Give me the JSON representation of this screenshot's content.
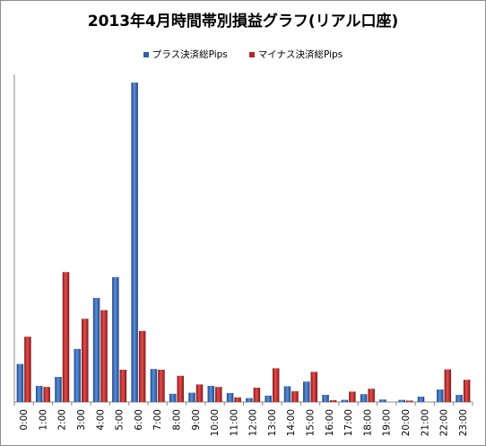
{
  "chart_data": {
    "type": "bar",
    "title": "2013年4月時間帯別損益グラフ(リアル口座)",
    "xlabel": "",
    "ylabel": "",
    "categories": [
      "0:00",
      "1:00",
      "2:00",
      "3:00",
      "4:00",
      "5:00",
      "6:00",
      "7:00",
      "8:00",
      "9:00",
      "10:00",
      "11:00",
      "12:00",
      "13:00",
      "14:00",
      "15:00",
      "16:00",
      "17:00",
      "18:00",
      "19:00",
      "20:00",
      "21:00",
      "22:00",
      "23:00"
    ],
    "series": [
      {
        "name": "プラス決済総Pips",
        "color": "#2e5fa8",
        "values": [
          106,
          45,
          70,
          148,
          290,
          348,
          890,
          92,
          23,
          26,
          45,
          25,
          11,
          18,
          44,
          57,
          20,
          6,
          22,
          7,
          6,
          15,
          35,
          20
        ]
      },
      {
        "name": "マイナス決済総Pips",
        "color": "#b52626",
        "values": [
          182,
          42,
          362,
          232,
          256,
          90,
          198,
          90,
          73,
          49,
          42,
          13,
          40,
          94,
          30,
          84,
          5,
          29,
          37,
          0,
          4,
          0,
          91,
          62
        ]
      }
    ],
    "ylim": [
      0,
      900
    ],
    "grid": false,
    "legend": "top"
  }
}
